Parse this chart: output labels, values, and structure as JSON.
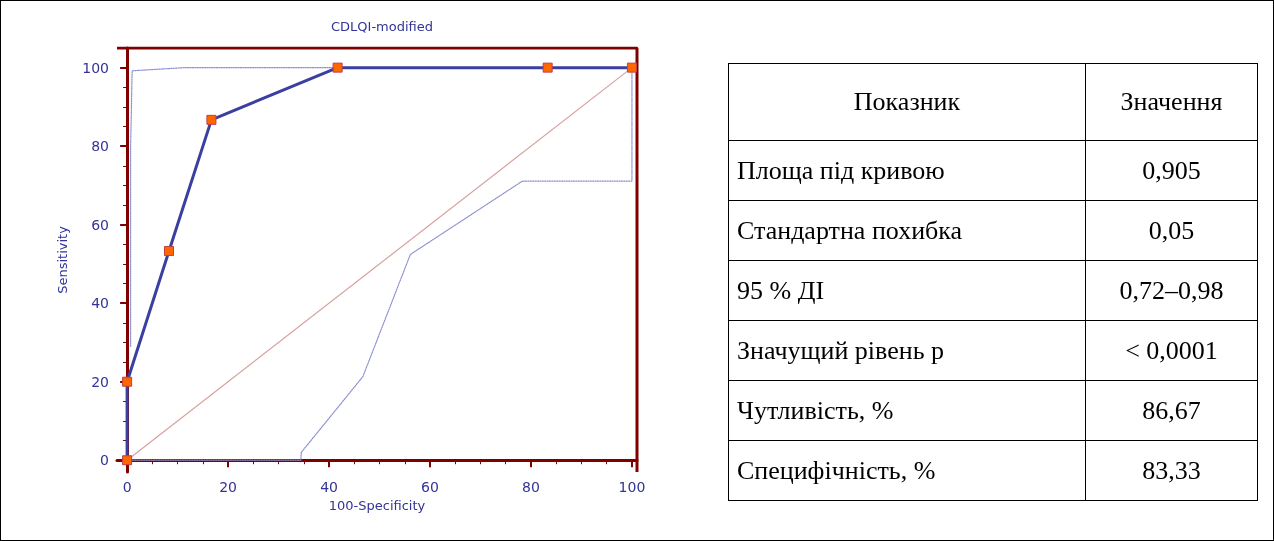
{
  "chart_data": [
    {
      "type": "line",
      "title": "CDLQI-modified",
      "xlabel": "100-Specificity",
      "ylabel": "Sensitivity",
      "xlim": [
        -2,
        101
      ],
      "ylim": [
        -3,
        105
      ],
      "xticks": [
        0,
        20,
        40,
        60,
        80,
        100
      ],
      "yticks": [
        0,
        20,
        40,
        60,
        80,
        100
      ],
      "grid": false,
      "series": [
        {
          "color": "#3a3fa0",
          "marker": "square",
          "line_style": "solid",
          "x": [
            0,
            0,
            8.3,
            16.7,
            41.7,
            83.3,
            100
          ],
          "values": [
            0,
            20,
            53.3,
            86.7,
            100,
            100,
            100
          ]
        },
        {
          "color": "#8a8fd0",
          "marker": "none",
          "line_style": "dotted",
          "x": [
            0.7,
            0.7,
            1,
            11.4,
            100
          ],
          "values": [
            29,
            80,
            99.2,
            100,
            100
          ]
        },
        {
          "color": "#8a8fd0",
          "marker": "none",
          "line_style": "dotted",
          "x": [
            0,
            34.4,
            34.5,
            46.7,
            56.1,
            78.3,
            100,
            100
          ],
          "values": [
            0,
            0,
            2,
            21.3,
            52.4,
            71.1,
            71.1,
            100
          ]
        },
        {
          "color": "#d9a0a0",
          "marker": "none",
          "line_style": "solid",
          "x": [
            0,
            100
          ],
          "values": [
            0,
            100
          ]
        }
      ]
    },
    {
      "type": "other",
      "annotations": [
        "Показник",
        "Значення",
        "Площа під кривою",
        "0,905",
        "Стандартна похибка",
        "0,05",
        "95 % ДІ",
        "0,72–0,98",
        "Значущий рівень p",
        "< 0,0001",
        "Чутливість, %",
        "86,67",
        "Специфічність, %",
        "83,33"
      ]
    }
  ]
}
